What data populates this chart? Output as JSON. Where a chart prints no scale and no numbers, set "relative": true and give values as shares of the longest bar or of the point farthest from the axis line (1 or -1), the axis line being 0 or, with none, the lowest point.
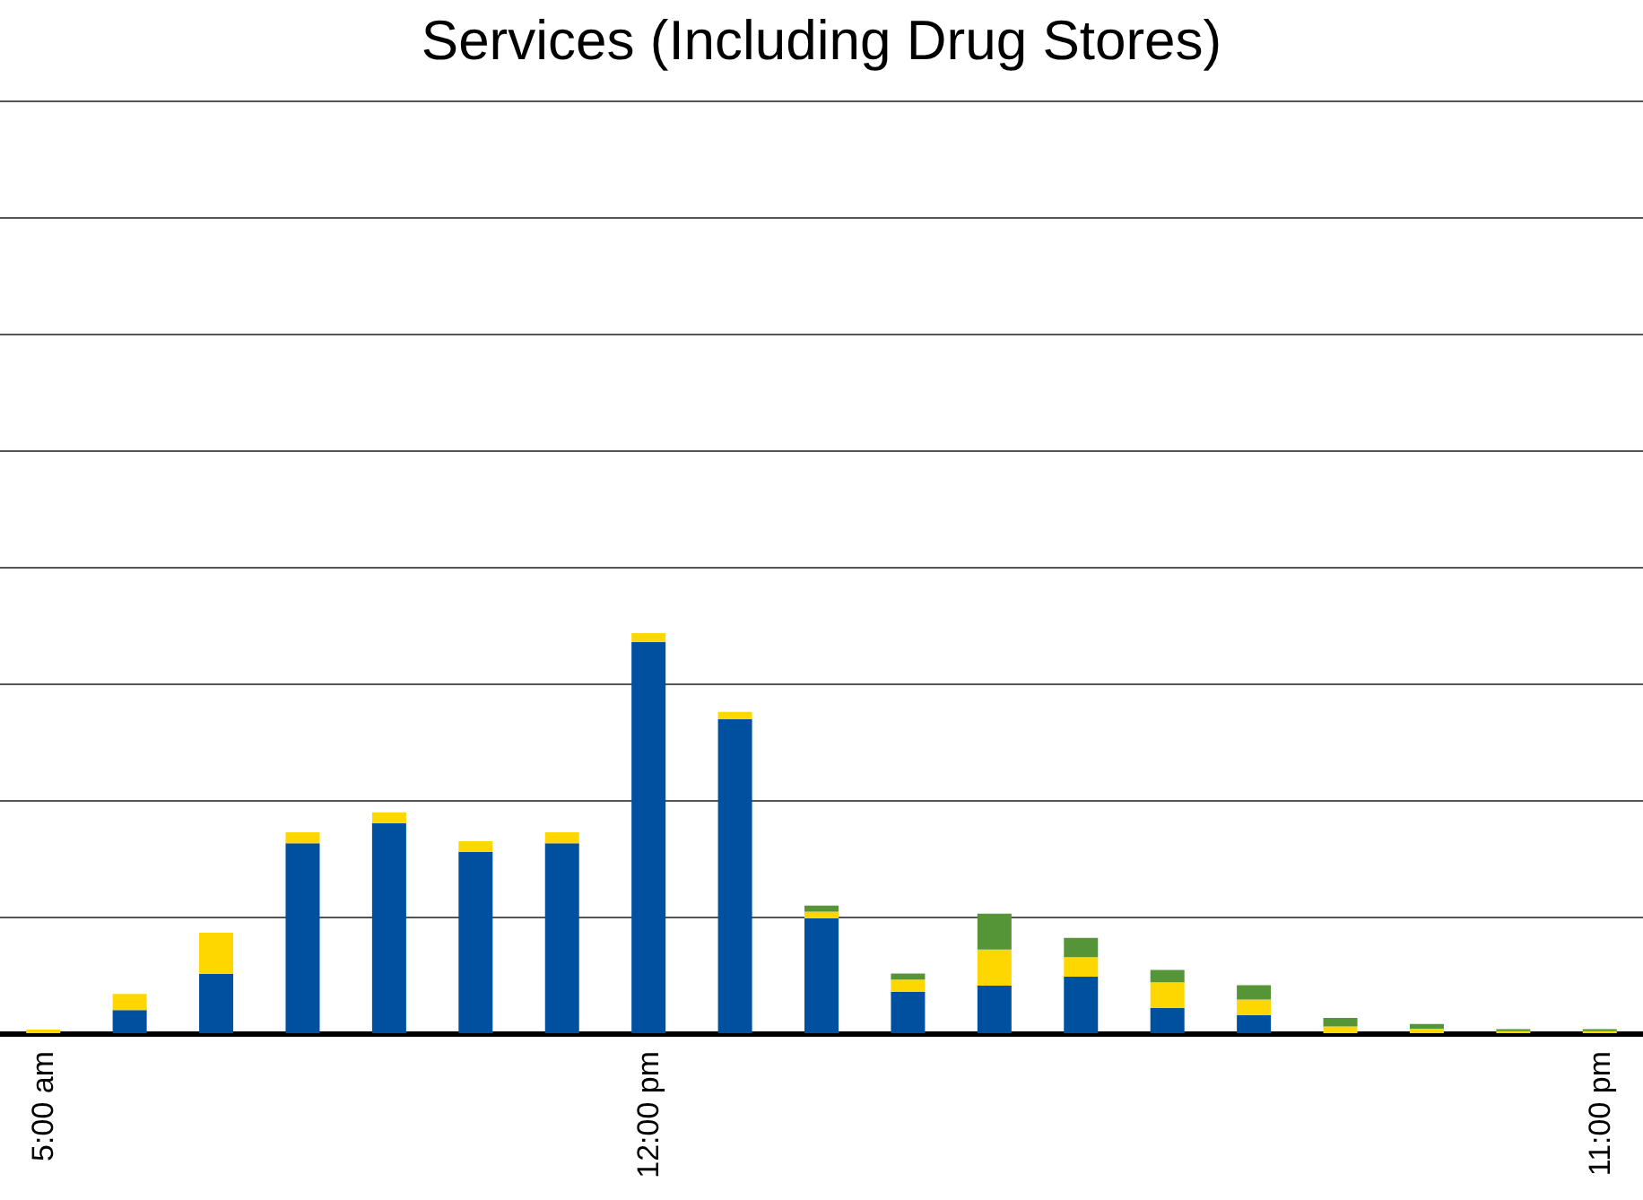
{
  "chart_data": {
    "type": "bar",
    "title": "Services (Including Drug Stores)",
    "stacked": true,
    "relative": true,
    "grid": "y",
    "tick_labels": "x",
    "categories": [
      "5:00 am",
      null,
      null,
      null,
      null,
      null,
      null,
      "12:00 pm",
      null,
      null,
      null,
      null,
      null,
      null,
      null,
      null,
      null,
      null,
      "11:00 pm"
    ],
    "series": [
      {
        "color": "#0050a0",
        "values": [
          0,
          0.058,
          0.148,
          0.475,
          0.525,
          0.453,
          0.475,
          0.978,
          0.785,
          0.287,
          0.103,
          0.119,
          0.141,
          0.063,
          0.045,
          0,
          0,
          0,
          0
        ]
      },
      {
        "color": "#ffd700",
        "values": [
          0.009,
          0.04,
          0.103,
          0.027,
          0.027,
          0.027,
          0.027,
          0.022,
          0.018,
          0.017,
          0.031,
          0.09,
          0.049,
          0.064,
          0.039,
          0.017,
          0.011,
          0.005,
          0.005
        ]
      },
      {
        "color": "#559537",
        "values": [
          0,
          0,
          0,
          0,
          0,
          0,
          0,
          0,
          0,
          0.015,
          0.015,
          0.09,
          0.048,
          0.031,
          0.036,
          0.021,
          0.012,
          0.005,
          0.005
        ]
      }
    ]
  }
}
